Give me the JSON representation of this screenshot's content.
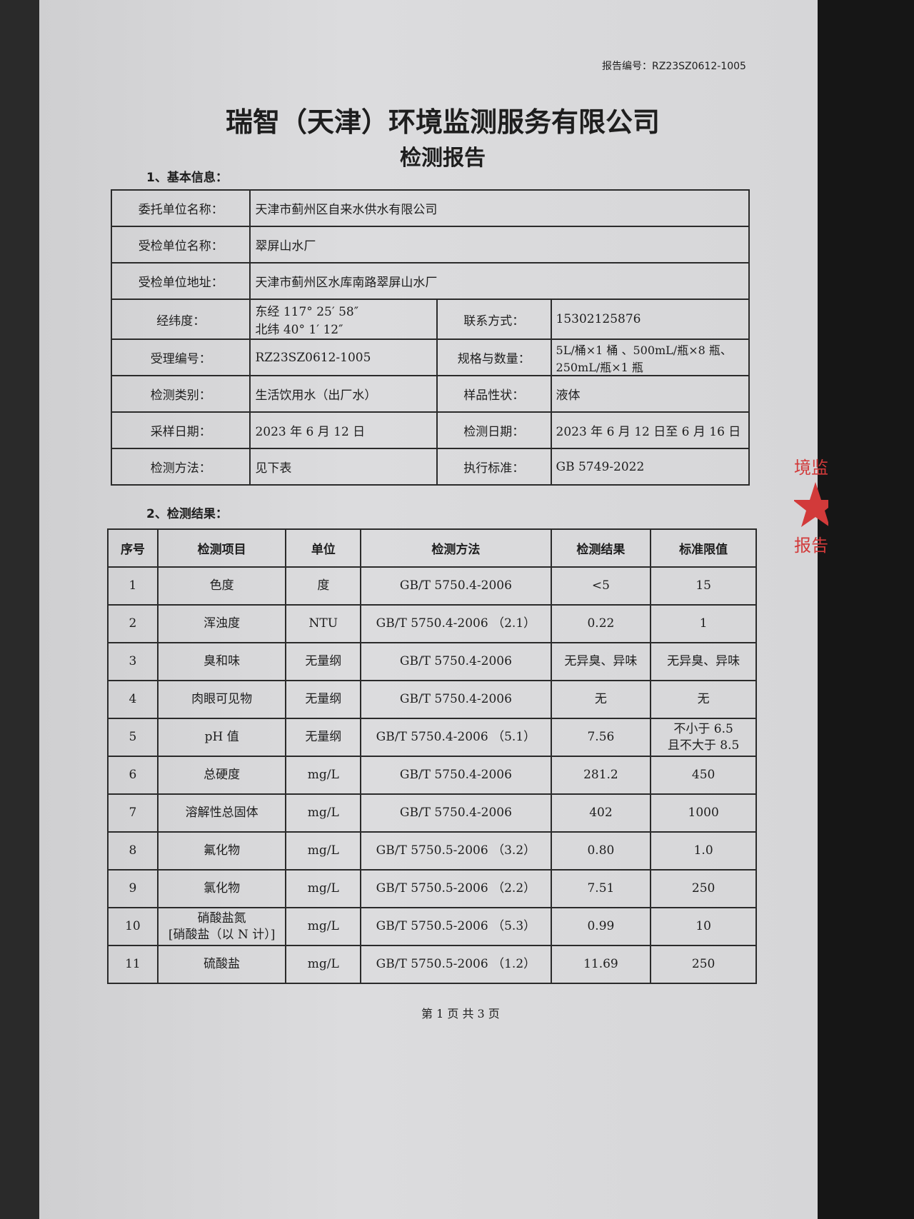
{
  "header": {
    "report_number": "报告编号：RZ23SZ0612-1005",
    "company": "瑞智（天津）环境监测服务有限公司",
    "doc_title": "检测报告"
  },
  "section1": {
    "title": "1、基本信息：",
    "client_label": "委托单位名称：",
    "client": "天津市蓟州区自来水供水有限公司",
    "inspected_label": "受检单位名称：",
    "inspected": "翠屏山水厂",
    "address_label": "受检单位地址：",
    "address": "天津市蓟州区水库南路翠屏山水厂",
    "coords_label": "经纬度：",
    "longitude": "东经 117° 25′ 58″",
    "latitude": "北纬 40° 1′ 12″",
    "contact_label": "联系方式：",
    "contact": "15302125876",
    "accept_no_label": "受理编号：",
    "accept_no": "RZ23SZ0612-1005",
    "spec_label": "规格与数量：",
    "spec_line1": "5L/桶×1 桶 、500mL/瓶×8 瓶、",
    "spec_line2": "250mL/瓶×1 瓶",
    "category_label": "检测类别：",
    "category": "生活饮用水（出厂水）",
    "sample_state_label": "样品性状：",
    "sample_state": "液体",
    "sampling_date_label": "采样日期：",
    "sampling_date": "2023 年 6 月 12 日",
    "test_date_label": "检测日期：",
    "test_date": "2023 年 6 月 12 日至 6 月 16 日",
    "method_label": "检测方法：",
    "method": "见下表",
    "standard_label": "执行标准：",
    "standard": "GB 5749-2022"
  },
  "section2": {
    "title": "2、检测结果：",
    "headers": [
      "序号",
      "检测项目",
      "单位",
      "检测方法",
      "检测结果",
      "标准限值"
    ],
    "rows": [
      {
        "no": "1",
        "item": "色度",
        "unit": "度",
        "method": "GB/T 5750.4-2006",
        "result": "<5",
        "limit": "15"
      },
      {
        "no": "2",
        "item": "浑浊度",
        "unit": "NTU",
        "method": "GB/T 5750.4-2006 （2.1）",
        "result": "0.22",
        "limit": "1"
      },
      {
        "no": "3",
        "item": "臭和味",
        "unit": "无量纲",
        "method": "GB/T 5750.4-2006",
        "result": "无异臭、异味",
        "limit": "无异臭、异味"
      },
      {
        "no": "4",
        "item": "肉眼可见物",
        "unit": "无量纲",
        "method": "GB/T 5750.4-2006",
        "result": "无",
        "limit": "无"
      },
      {
        "no": "5",
        "item": "pH 值",
        "unit": "无量纲",
        "method": "GB/T 5750.4-2006 （5.1）",
        "result": "7.56",
        "limit": "不小于 6.5",
        "limit2": "且不大于 8.5"
      },
      {
        "no": "6",
        "item": "总硬度",
        "unit": "mg/L",
        "method": "GB/T 5750.4-2006",
        "result": "281.2",
        "limit": "450"
      },
      {
        "no": "7",
        "item": "溶解性总固体",
        "unit": "mg/L",
        "method": "GB/T 5750.4-2006",
        "result": "402",
        "limit": "1000"
      },
      {
        "no": "8",
        "item": "氟化物",
        "unit": "mg/L",
        "method": "GB/T 5750.5-2006 （3.2）",
        "result": "0.80",
        "limit": "1.0"
      },
      {
        "no": "9",
        "item": "氯化物",
        "unit": "mg/L",
        "method": "GB/T 5750.5-2006 （2.2）",
        "result": "7.51",
        "limit": "250"
      },
      {
        "no": "10",
        "item": "硝酸盐氮",
        "item2": "[硝酸盐（以 N 计）]",
        "unit": "mg/L",
        "method": "GB/T 5750.5-2006 （5.3）",
        "result": "0.99",
        "limit": "10"
      },
      {
        "no": "11",
        "item": "硫酸盐",
        "unit": "mg/L",
        "method": "GB/T 5750.5-2006 （1.2）",
        "result": "11.69",
        "limit": "250"
      }
    ]
  },
  "footer": {
    "page": "第 1 页 共 3 页"
  },
  "stamp": {
    "text_top": "境监",
    "text_bottom": "报告",
    "color": "#d23a3a"
  }
}
